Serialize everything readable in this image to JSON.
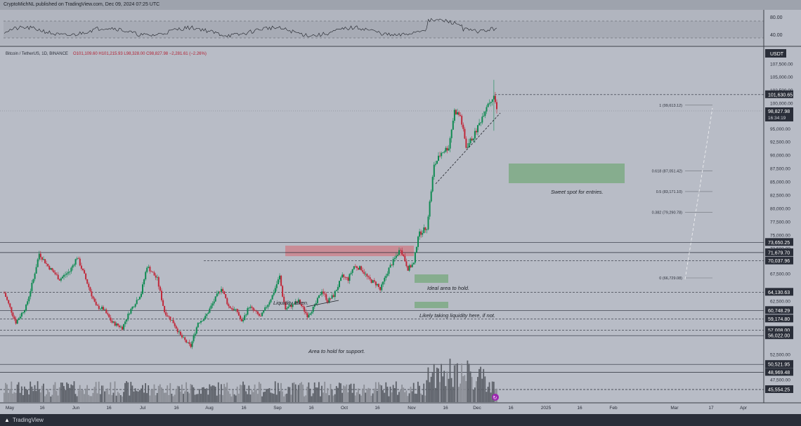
{
  "header": {
    "published": "CryptoMichNL published on TradingView.com, Dec 09, 2024 07:25 UTC"
  },
  "footer": {
    "brand": "TradingView"
  },
  "symbol": {
    "name": "Bitcoin / TetherUS, 1D, BINANCE",
    "ohlc": "O101,109.60 H101,215.93 L98,328.00 C98,827.98 −2,281.61 (−2.26%)"
  },
  "price_axis": {
    "currency": "USDT",
    "ticks": [
      "107,500.00",
      "105,000.00",
      "102,500.00",
      "100,000.00",
      "97,500.00",
      "95,000.00",
      "92,500.00",
      "90,000.00",
      "87,500.00",
      "85,000.00",
      "82,500.00",
      "80,000.00",
      "77,500.00",
      "75,000.00",
      "72,500.00",
      "67,500.00",
      "62,500.00",
      "52,500.00",
      "47,500.00"
    ],
    "current_price": "98,827.98",
    "countdown": "16:34:19",
    "level_labels": [
      "101,630.65",
      "73,650.25",
      "71,679.70",
      "70,037.96",
      "64,130.63",
      "60,748.29",
      "59,174.80",
      "57,008.00",
      "56,022.00",
      "50,521.95",
      "48,969.48",
      "45,554.25"
    ]
  },
  "rsi_axis": {
    "ticks": [
      "80.00",
      "40.00"
    ]
  },
  "time_axis": {
    "ticks": [
      "May",
      "16",
      "Jun",
      "16",
      "Jul",
      "16",
      "Aug",
      "16",
      "Sep",
      "16",
      "Oct",
      "16",
      "Nov",
      "16",
      "Dec",
      "16",
      "2025",
      "16",
      "Feb",
      "Mar",
      "17",
      "Apr"
    ]
  },
  "fib_levels": [
    {
      "label": "1 (99,613.12)",
      "price": 99613.12
    },
    {
      "label": "0.618 (87,051.42)",
      "price": 87051.42
    },
    {
      "label": "0.5 (83,171.10)",
      "price": 83171.1
    },
    {
      "label": "0.382 (79,290.78)",
      "price": 79290.78
    },
    {
      "label": "0 (66,729.08)",
      "price": 66729.08
    }
  ],
  "annotations": {
    "sweet_spot": "Sweet spot for entries.",
    "ideal_area": "Ideal area to hold.",
    "liquidity_taken": "Liquidity taken.",
    "likely_liquidity": "Likely taking liquidity here, if not.",
    "area_support": "Area to hold for support."
  },
  "colors": {
    "up": "#0f8a52",
    "down": "#c0293a",
    "background": "#b8bcc6",
    "zone_green": "#86ad8e",
    "zone_red": "#c98c96"
  },
  "chart_data": {
    "type": "candlestick",
    "title": "Bitcoin / TetherUS, 1D, BINANCE",
    "price_range": [
      44000,
      109500
    ],
    "horizontal_levels": [
      101630.65,
      73650.25,
      71679.7,
      70037.96,
      64130.63,
      60748.29,
      59174.8,
      57008.0,
      56022.0,
      50521.95,
      48969.48,
      45554.25
    ],
    "series": [
      {
        "name": "price",
        "anchors": [
          [
            0,
            64000
          ],
          [
            8,
            58500
          ],
          [
            15,
            61500
          ],
          [
            20,
            66500
          ],
          [
            24,
            71500
          ],
          [
            30,
            69000
          ],
          [
            38,
            66500
          ],
          [
            45,
            68000
          ],
          [
            50,
            70800
          ],
          [
            56,
            66500
          ],
          [
            63,
            61500
          ],
          [
            68,
            61000
          ],
          [
            74,
            58500
          ],
          [
            81,
            57500
          ],
          [
            86,
            60500
          ],
          [
            94,
            64000
          ],
          [
            98,
            69000
          ],
          [
            105,
            66500
          ],
          [
            110,
            60500
          ],
          [
            116,
            58500
          ],
          [
            121,
            56000
          ],
          [
            126,
            54500
          ],
          [
            128,
            54000
          ],
          [
            133,
            58500
          ],
          [
            138,
            59500
          ],
          [
            144,
            62500
          ],
          [
            149,
            65000
          ],
          [
            154,
            61500
          ],
          [
            160,
            60500
          ],
          [
            163,
            58500
          ],
          [
            168,
            61500
          ],
          [
            172,
            60500
          ],
          [
            176,
            59500
          ],
          [
            180,
            61500
          ],
          [
            184,
            63500
          ],
          [
            189,
            67000
          ],
          [
            191,
            63500
          ],
          [
            193,
            61000
          ],
          [
            196,
            61500
          ],
          [
            202,
            62500
          ],
          [
            208,
            59800
          ],
          [
            213,
            61500
          ],
          [
            218,
            64500
          ],
          [
            222,
            62500
          ],
          [
            226,
            63500
          ],
          [
            232,
            67000
          ],
          [
            236,
            66500
          ],
          [
            240,
            69000
          ],
          [
            245,
            68500
          ],
          [
            250,
            66500
          ],
          [
            256,
            65500
          ],
          [
            258,
            64500
          ],
          [
            264,
            68500
          ],
          [
            268,
            70500
          ],
          [
            272,
            72500
          ],
          [
            277,
            68500
          ],
          [
            281,
            69500
          ],
          [
            284,
            75000
          ],
          [
            290,
            76500
          ],
          [
            295,
            88000
          ],
          [
            300,
            90500
          ],
          [
            305,
            91500
          ],
          [
            309,
            98500
          ],
          [
            313,
            97500
          ],
          [
            317,
            91500
          ],
          [
            322,
            93500
          ],
          [
            326,
            96000
          ],
          [
            331,
            99500
          ],
          [
            336,
            101630.65
          ],
          [
            338,
            98827.98
          ]
        ]
      }
    ]
  }
}
